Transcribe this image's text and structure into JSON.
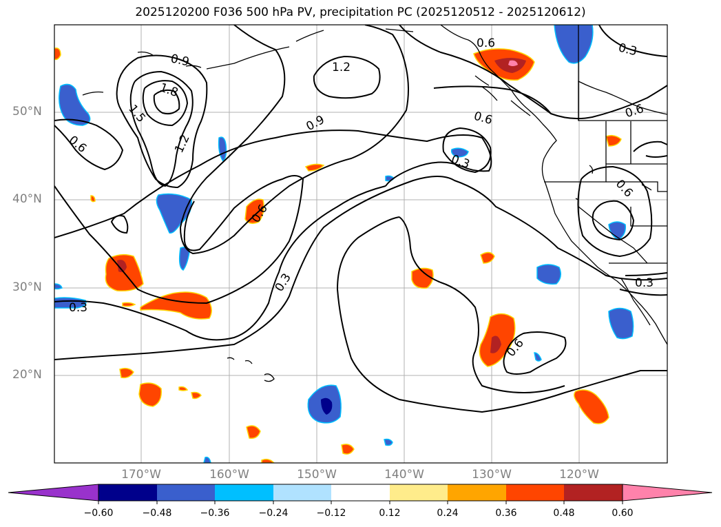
{
  "title": "2025120200 F036 500 hPa PV, precipitation PC (2025120512 - 2025120612)",
  "lat_labels": [
    "50°N",
    "40°N",
    "30°N",
    "20°N"
  ],
  "lon_labels": [
    "170°W",
    "160°W",
    "150°W",
    "140°W",
    "130°W",
    "120°W"
  ],
  "contour_labels": [
    "0.9",
    "1.8",
    "1.5",
    "1.2",
    "0.6",
    "1.2",
    "0.9",
    "0.6",
    "0.6",
    "0.3",
    "0.3",
    "0.6",
    "0.3",
    "0.3",
    "0.3",
    "0.6",
    "0.6",
    "0.6"
  ],
  "colorbar": {
    "ticks": [
      "−0.60",
      "−0.48",
      "−0.36",
      "−0.24",
      "−0.12",
      "0.12",
      "0.24",
      "0.36",
      "0.48",
      "0.60"
    ],
    "colors": [
      "#9932cc",
      "#00008b",
      "#3a5fcd",
      "#00bfff",
      "#b0e2ff",
      "#ffffff",
      "#ffec8b",
      "#ffa500",
      "#ff4500",
      "#b22222",
      "#ff82ab"
    ]
  }
}
